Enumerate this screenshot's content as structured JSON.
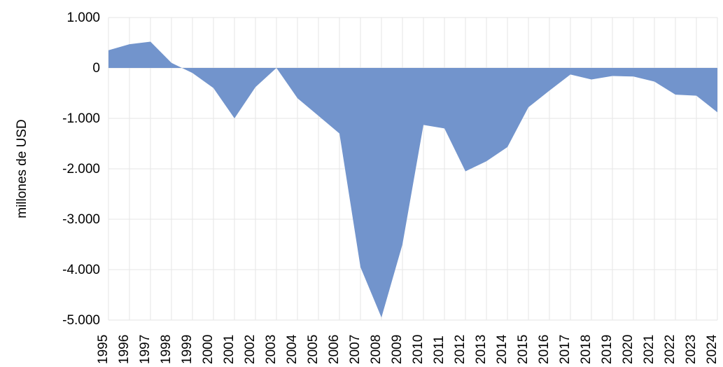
{
  "chart_data": {
    "type": "area",
    "y_label": "millones de USD",
    "categories": [
      "1995",
      "1996",
      "1997",
      "1998",
      "1999",
      "2000",
      "2001",
      "2002",
      "2003",
      "2004",
      "2005",
      "2006",
      "2007",
      "2008",
      "2009",
      "2010",
      "2011",
      "2012",
      "2013",
      "2014",
      "2015",
      "2016",
      "2017",
      "2018",
      "2019",
      "2020",
      "2021",
      "2022",
      "2023",
      "2024"
    ],
    "series": [
      {
        "name": null,
        "color": "#7294cc",
        "values": [
          350,
          470,
          520,
          100,
          -100,
          -400,
          -1000,
          -380,
          0,
          -600,
          -950,
          -1300,
          -3950,
          -4950,
          -3500,
          -1130,
          -1200,
          -2050,
          -1850,
          -1570,
          -780,
          -450,
          -130,
          -230,
          -160,
          -170,
          -270,
          -530,
          -550,
          -880
        ]
      }
    ],
    "ylim": [
      -5000,
      1000
    ],
    "yticks": [
      {
        "value": 1000,
        "label": "1.000"
      },
      0,
      {
        "value": -1000,
        "label": "-1.000"
      },
      {
        "value": -2000,
        "label": "-2.000"
      },
      {
        "value": -3000,
        "label": "-3.000"
      },
      {
        "value": -4000,
        "label": "-4.000"
      },
      {
        "value": -5000,
        "label": "-5.000"
      }
    ],
    "grid": true
  }
}
